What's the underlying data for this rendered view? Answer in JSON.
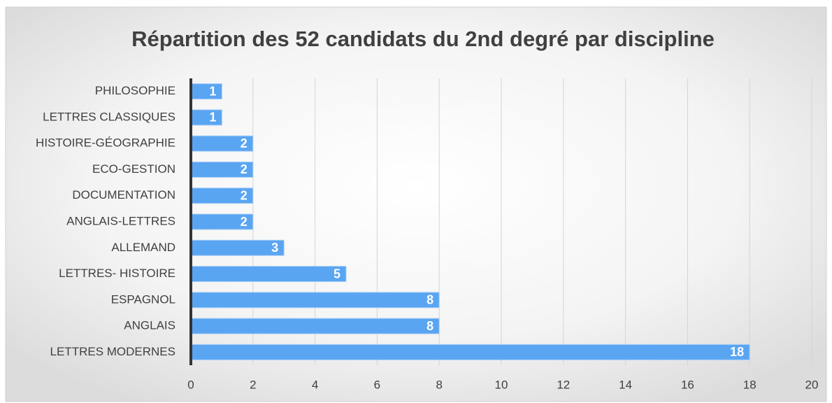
{
  "chart_data": {
    "type": "bar",
    "orientation": "horizontal",
    "title": "Répartition des 52 candidats du 2nd degré par discipline",
    "categories": [
      "PHILOSOPHIE",
      "LETTRES CLASSIQUES",
      "HISTOIRE-GÉOGRAPHIE",
      "ECO-GESTION",
      "DOCUMENTATION",
      "ANGLAIS-LETTRES",
      "ALLEMAND",
      "LETTRES- HISTOIRE",
      "ESPAGNOL",
      "ANGLAIS",
      "LETTRES MODERNES"
    ],
    "values": [
      1,
      1,
      2,
      2,
      2,
      2,
      3,
      5,
      8,
      8,
      18
    ],
    "color": "#5aa5f2",
    "xlim": [
      0,
      20
    ],
    "xticks": [
      0,
      2,
      4,
      6,
      8,
      10,
      12,
      14,
      16,
      18,
      20
    ],
    "grid": true
  }
}
